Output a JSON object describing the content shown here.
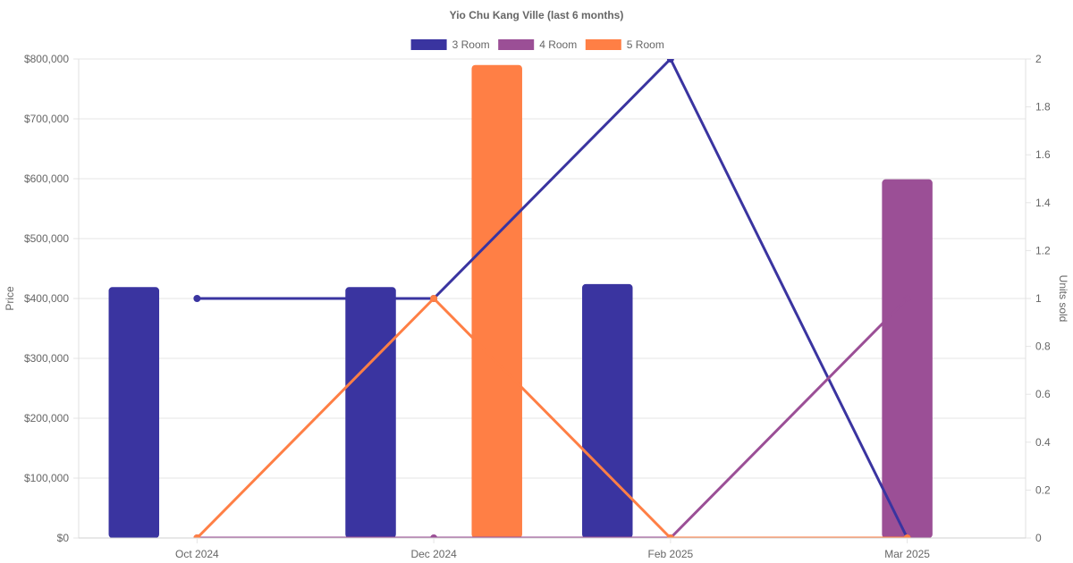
{
  "chart_data": {
    "type": "bar",
    "title": "Yio Chu Kang Ville (last 6 months)",
    "categories": [
      "Oct 2024",
      "Dec 2024",
      "Feb 2025",
      "Mar 2025"
    ],
    "y_left": {
      "label": "Price",
      "range": [
        0,
        800000
      ],
      "ticks": [
        "$0",
        "$100,000",
        "$200,000",
        "$300,000",
        "$400,000",
        "$500,000",
        "$600,000",
        "$700,000",
        "$800,000"
      ]
    },
    "y_right": {
      "label": "Units sold",
      "range": [
        0,
        2
      ],
      "ticks": [
        "0",
        "0.2",
        "0.4",
        "0.6",
        "0.8",
        "1",
        "1.2",
        "1.4",
        "1.6",
        "1.8",
        "2"
      ]
    },
    "legend": {
      "position": "top"
    },
    "grid": true,
    "bar_series": [
      {
        "name": "3 Room",
        "color": "#3a34a0",
        "values": [
          419000,
          419000,
          424000,
          0
        ]
      },
      {
        "name": "4 Room",
        "color": "#9b4f96",
        "values": [
          0,
          0,
          0,
          599000
        ]
      },
      {
        "name": "5 Room",
        "color": "#ff7f45",
        "values": [
          0,
          790000,
          0,
          0
        ]
      }
    ],
    "line_series": [
      {
        "name": "3 Room",
        "color": "#3a34a0",
        "values": [
          1,
          1,
          2,
          0
        ]
      },
      {
        "name": "4 Room",
        "color": "#9b4f96",
        "values": [
          0,
          0,
          0,
          1
        ]
      },
      {
        "name": "5 Room",
        "color": "#ff7f45",
        "values": [
          0,
          1,
          0,
          0
        ]
      }
    ]
  }
}
